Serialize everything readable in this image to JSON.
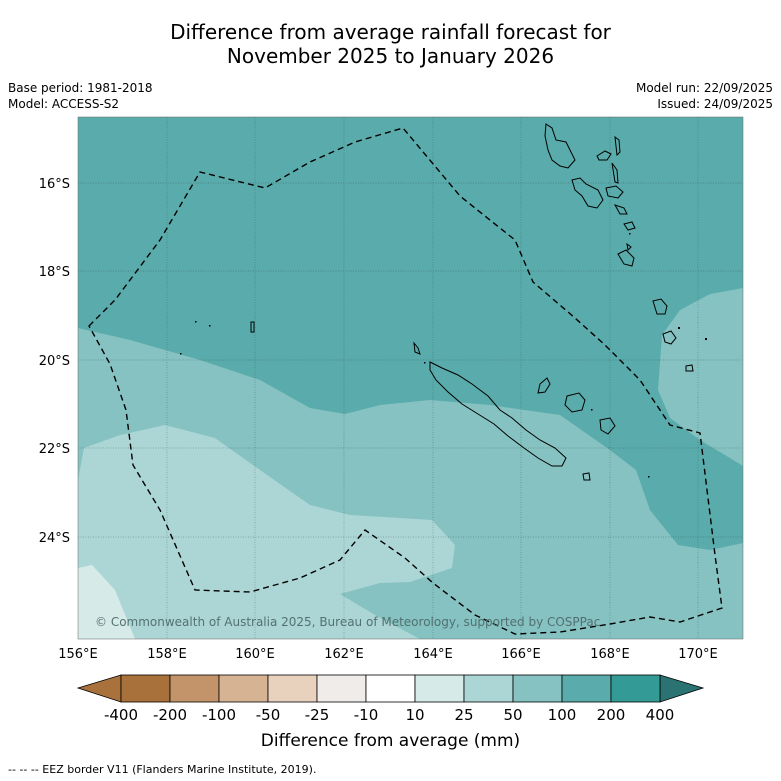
{
  "title_line1": "Difference from average rainfall forecast for",
  "title_line2": "November 2025 to January 2026",
  "meta_left": {
    "base_period": "Base period: 1981-2018",
    "model": "Model: ACCESS-S2"
  },
  "meta_right": {
    "model_run": "Model run: 22/09/2025",
    "issued": "Issued: 24/09/2025"
  },
  "map": {
    "lat_labels": [
      "16°S",
      "18°S",
      "20°S",
      "22°S",
      "24°S"
    ],
    "lon_labels": [
      "156°E",
      "158°E",
      "160°E",
      "162°E",
      "164°E",
      "166°E",
      "168°E",
      "170°E"
    ],
    "copyright": "© Commonwealth of Australia 2025, Bureau of Meteorology, supported by COSPPac",
    "colors": {
      "band_100_200": "#5aabab",
      "band_50_100": "#85c2c1",
      "band_25_50": "#acd6d5",
      "band_10_25": "#d6eae8"
    }
  },
  "colorbar": {
    "ticks": [
      "-400",
      "-200",
      "-100",
      "-50",
      "-25",
      "-10",
      "10",
      "25",
      "50",
      "100",
      "200",
      "400"
    ],
    "colors": [
      "#a8703a",
      "#c39469",
      "#d5b393",
      "#e8d2bd",
      "#f0ece9",
      "#ffffff",
      "#d6eae8",
      "#acd6d5",
      "#85c2c1",
      "#5aabab",
      "#339a96"
    ],
    "under_color": "#a9713c",
    "over_color": "#2a7372",
    "label": "Difference from average (mm)"
  },
  "footer": "--  --  -- EEZ border V11 (Flanders Marine Institute, 2019)."
}
